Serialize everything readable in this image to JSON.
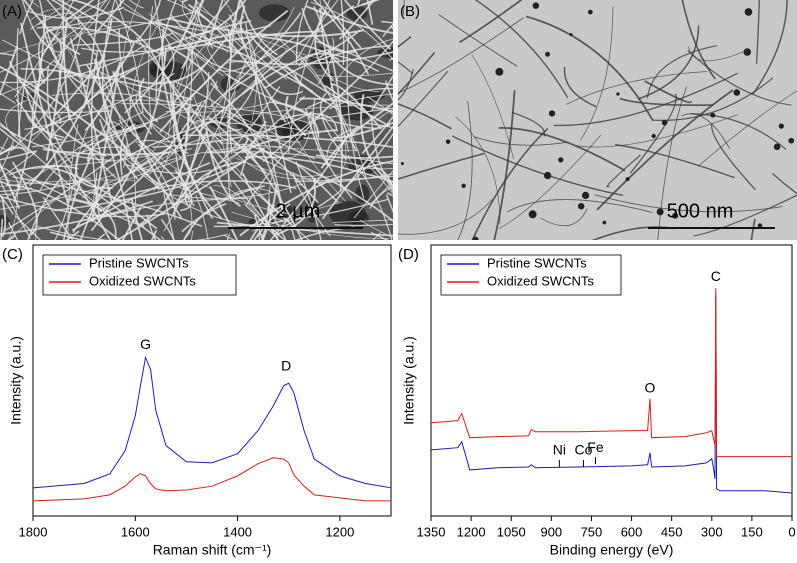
{
  "images": [
    {
      "label": "(A)",
      "scale_bar": "2 µm"
    },
    {
      "label": "(B)",
      "scale_bar": "500 nm"
    }
  ],
  "chart_data": [
    {
      "type": "line",
      "label": "(C)",
      "x_label": "Raman shift (cm⁻¹)",
      "y_label": "Intensity (a.u.)",
      "x": [
        1800,
        1700,
        1650,
        1620,
        1600,
        1590,
        1580,
        1570,
        1560,
        1540,
        1500,
        1450,
        1400,
        1360,
        1330,
        1310,
        1300,
        1290,
        1270,
        1250,
        1200,
        1150,
        1100
      ],
      "xlim": [
        1800,
        1100
      ],
      "xticks": [
        1800,
        1600,
        1400,
        1200
      ],
      "ylim": [
        0,
        100
      ],
      "legend": "upper left",
      "series": [
        {
          "name": "Pristine SWCNTs",
          "color": "#1f1fa8",
          "values": [
            10.4,
            12,
            15.5,
            24,
            37,
            48,
            58.5,
            54,
            39,
            26,
            20,
            19.6,
            23,
            31.5,
            40.7,
            48,
            49,
            45.5,
            31.5,
            21,
            14.8,
            12,
            10.4
          ]
        },
        {
          "name": "Oxidized SWCNTs",
          "color": "#d42020",
          "values": [
            5.6,
            6.3,
            7.8,
            11,
            14.4,
            15.6,
            14.8,
            11.9,
            10,
            9.3,
            9.6,
            11,
            14.8,
            19.3,
            21.5,
            21,
            19.6,
            15.2,
            11,
            7.8,
            6.7,
            5.6,
            5.6
          ]
        }
      ],
      "annotations": [
        "G",
        "D"
      ]
    },
    {
      "type": "line",
      "label": "(D)",
      "x_label": "Binding energy (eV)",
      "y_label": "Intensity (a.u.)",
      "x": [
        1350,
        1250,
        1235,
        1220,
        1205,
        1100,
        985,
        975,
        960,
        800,
        600,
        540,
        531,
        525,
        400,
        320,
        300,
        292,
        288,
        285,
        282,
        270,
        100,
        0
      ],
      "xlim": [
        1350,
        0
      ],
      "xticks": [
        1350,
        1200,
        1050,
        900,
        750,
        600,
        450,
        300,
        150,
        0
      ],
      "ylim": [
        0,
        100
      ],
      "legend": "upper left",
      "series": [
        {
          "name": "Pristine SWCNTs",
          "color": "#1f1fa8",
          "values": [
            24.4,
            25.2,
            27.4,
            22.2,
            17,
            17.8,
            18.1,
            18.9,
            17.8,
            18.1,
            18.5,
            18.9,
            23.3,
            18.1,
            18.5,
            19.6,
            21.1,
            16.7,
            13.7,
            81.5,
            10,
            9.3,
            9.3,
            8.5
          ]
        },
        {
          "name": "Oxidized SWCNTs",
          "color": "#d42020",
          "values": [
            34.4,
            35.2,
            37.8,
            33.3,
            28.9,
            29.3,
            29.6,
            31.9,
            31.1,
            31.1,
            31.5,
            31.5,
            43.3,
            28.9,
            29.3,
            30.7,
            31.5,
            27.8,
            26,
            84.1,
            21.9,
            21.9,
            21.9,
            21.9
          ]
        }
      ],
      "annotations": [
        "C",
        "O",
        "Ni",
        "Co",
        "Fe"
      ]
    }
  ]
}
